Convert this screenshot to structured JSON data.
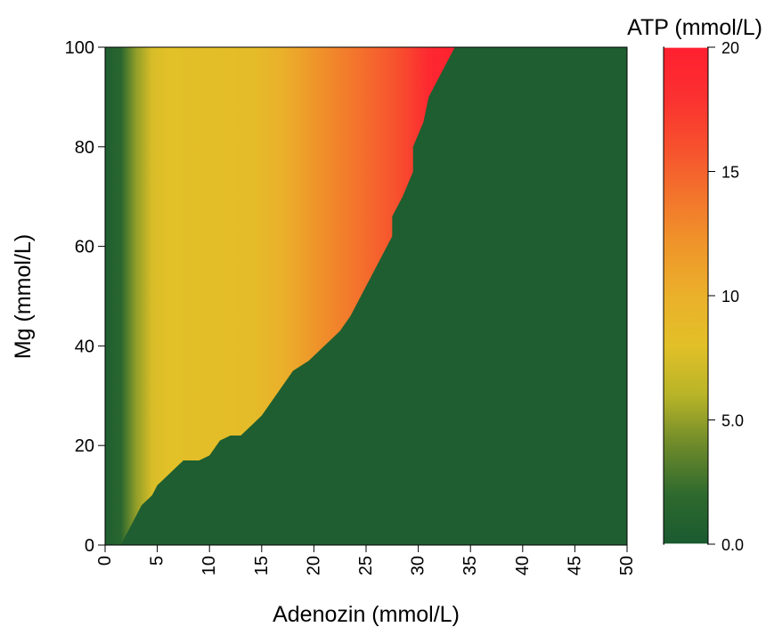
{
  "chart_data": {
    "type": "heatmap",
    "xlabel": "Adenozin (mmol/L)",
    "ylabel": "Mg (mmol/L)",
    "colorbar_label": "ATP (mmol/L)",
    "xlim": [
      0,
      50
    ],
    "ylim": [
      0,
      100
    ],
    "clim": [
      0,
      20
    ],
    "x_ticks": [
      0,
      5,
      10,
      15,
      20,
      25,
      30,
      35,
      40,
      45,
      50
    ],
    "x_tick_labels": [
      "0",
      "5",
      "10",
      "15",
      "20",
      "25",
      "30",
      "35",
      "40",
      "45",
      "50"
    ],
    "y_ticks": [
      0,
      20,
      40,
      60,
      80,
      100
    ],
    "y_tick_labels": [
      "0",
      "20",
      "40",
      "60",
      "80",
      "100"
    ],
    "colorbar_ticks": [
      0,
      5,
      10,
      15,
      20
    ],
    "colorbar_tick_labels": [
      "0.0",
      "5.0",
      "10",
      "15",
      "20"
    ],
    "colormap": [
      {
        "value": 0,
        "color": "#1a5a30"
      },
      {
        "value": 2,
        "color": "#2e6a2e"
      },
      {
        "value": 4,
        "color": "#6e8a2a"
      },
      {
        "value": 6,
        "color": "#b8b428"
      },
      {
        "value": 8,
        "color": "#e2c028"
      },
      {
        "value": 10,
        "color": "#ebb02a"
      },
      {
        "value": 12,
        "color": "#ef962a"
      },
      {
        "value": 14,
        "color": "#f3742c"
      },
      {
        "value": 16,
        "color": "#f7502e"
      },
      {
        "value": 18,
        "color": "#fb3030"
      },
      {
        "value": 20,
        "color": "#ff1f30"
      }
    ],
    "boundary_adenosine_vs_mg": [
      [
        1.5,
        0
      ],
      [
        2.5,
        4
      ],
      [
        3.5,
        8
      ],
      [
        4.5,
        10
      ],
      [
        5,
        12
      ],
      [
        6,
        14
      ],
      [
        7,
        16
      ],
      [
        7.5,
        17
      ],
      [
        9,
        17
      ],
      [
        10,
        18
      ],
      [
        11,
        21
      ],
      [
        12,
        22
      ],
      [
        13,
        22
      ],
      [
        14,
        24
      ],
      [
        15,
        26
      ],
      [
        16,
        29
      ],
      [
        17,
        32
      ],
      [
        18,
        35
      ],
      [
        19.5,
        37
      ],
      [
        21,
        40
      ],
      [
        22.5,
        43
      ],
      [
        23.5,
        46
      ],
      [
        24.5,
        50
      ],
      [
        25.5,
        54
      ],
      [
        26.5,
        58
      ],
      [
        27.5,
        62
      ],
      [
        27.5,
        66
      ],
      [
        28.5,
        70
      ],
      [
        29.5,
        75
      ],
      [
        29.5,
        80
      ],
      [
        30.5,
        85
      ],
      [
        31,
        90
      ],
      [
        32,
        94
      ],
      [
        33.5,
        100
      ]
    ],
    "value_profile_along_adenosine_above_boundary": [
      [
        0,
        0.5
      ],
      [
        1.5,
        1.5
      ],
      [
        3,
        5
      ],
      [
        4.5,
        7.5
      ],
      [
        6,
        8
      ],
      [
        10,
        8.3
      ],
      [
        14,
        8.5
      ],
      [
        17,
        10
      ],
      [
        20,
        12
      ],
      [
        24,
        14
      ],
      [
        28,
        16
      ],
      [
        31,
        19
      ],
      [
        34,
        20
      ]
    ],
    "value_below_boundary": 0.5,
    "grid": false,
    "legend": "colorbar right"
  }
}
